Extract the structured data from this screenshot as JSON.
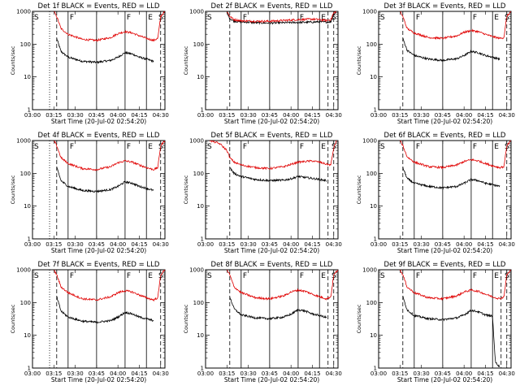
{
  "figure": {
    "xlabel": "Start Time (20-Jul-02 02:54:20)",
    "ylabel": "Counts/sec",
    "x_tick_labels": [
      "03:00",
      "03:15",
      "03:30",
      "03:45",
      "04:00",
      "04:15",
      "04:30"
    ],
    "y_tick_labels": [
      "1",
      "10",
      "100",
      "1000"
    ],
    "region_markers": [
      "S",
      "F",
      "F",
      "E",
      "S"
    ],
    "colors": {
      "events": "#000000",
      "lld": "#e00000",
      "background": "#ffffff"
    }
  },
  "chart_data": [
    {
      "type": "line",
      "title": "Det 1f BLACK = Events, RED = LLD",
      "x_range": [
        "03:00",
        "04:33"
      ],
      "y_scale": "log",
      "ylim": [
        1,
        1000
      ],
      "series": [
        {
          "name": "Events",
          "color": "#000000",
          "t_start": "03:17",
          "t_end": "04:25",
          "x": [
            "03:17",
            "03:20",
            "03:25",
            "03:35",
            "03:45",
            "03:55",
            "04:00",
            "04:05",
            "04:10",
            "04:15",
            "04:20",
            "04:25"
          ],
          "y": [
            150,
            60,
            40,
            30,
            28,
            32,
            40,
            55,
            50,
            40,
            35,
            30
          ]
        },
        {
          "name": "LLD",
          "color": "#e00000",
          "t_start": "03:15",
          "t_end": "04:33",
          "x": [
            "03:15",
            "03:17",
            "03:20",
            "03:25",
            "03:35",
            "03:45",
            "03:55",
            "04:00",
            "04:05",
            "04:10",
            "04:15",
            "04:20",
            "04:25",
            "04:28",
            "04:30",
            "04:33"
          ],
          "y": [
            1000,
            700,
            300,
            200,
            140,
            130,
            160,
            210,
            240,
            220,
            180,
            150,
            130,
            150,
            700,
            1000
          ]
        }
      ],
      "markers": {
        "dotted": [
          "03:12"
        ],
        "dashed": [
          "03:17",
          "04:30"
        ],
        "solid": [
          "03:25",
          "03:45",
          "04:05",
          "04:20"
        ]
      }
    },
    {
      "type": "line",
      "title": "Det 2f BLACK = Events, RED = LLD",
      "x_range": [
        "03:00",
        "04:33"
      ],
      "y_scale": "log",
      "ylim": [
        1,
        1000
      ],
      "series": [
        {
          "name": "Events",
          "color": "#000000",
          "t_start": "03:15",
          "t_end": "04:32",
          "x": [
            "03:15",
            "03:17",
            "03:20",
            "03:25",
            "03:35",
            "03:45",
            "03:55",
            "04:05",
            "04:15",
            "04:20",
            "04:25",
            "04:28",
            "04:30",
            "04:32"
          ],
          "y": [
            1000,
            600,
            500,
            480,
            450,
            440,
            450,
            460,
            470,
            480,
            470,
            480,
            800,
            1000
          ]
        },
        {
          "name": "LLD",
          "color": "#e00000",
          "t_start": "03:15",
          "t_end": "04:32",
          "x": [
            "03:15",
            "03:17",
            "03:20",
            "03:25",
            "03:35",
            "03:45",
            "03:55",
            "04:05",
            "04:15",
            "04:20",
            "04:25",
            "04:28",
            "04:30",
            "04:32"
          ],
          "y": [
            1000,
            700,
            560,
            520,
            500,
            500,
            530,
            560,
            580,
            560,
            530,
            560,
            900,
            1000
          ]
        }
      ],
      "markers": {
        "dotted": [],
        "dashed": [
          "03:17",
          "04:26",
          "04:30"
        ],
        "solid": [
          "03:25",
          "03:45",
          "04:05",
          "04:20"
        ]
      }
    },
    {
      "type": "line",
      "title": "Det 3f BLACK = Events, RED = LLD",
      "x_range": [
        "03:00",
        "04:33"
      ],
      "y_scale": "log",
      "ylim": [
        1,
        1000
      ],
      "series": [
        {
          "name": "Events",
          "color": "#000000",
          "t_start": "03:17",
          "t_end": "04:25",
          "x": [
            "03:17",
            "03:20",
            "03:25",
            "03:35",
            "03:45",
            "03:55",
            "04:00",
            "04:05",
            "04:10",
            "04:15",
            "04:20",
            "04:25"
          ],
          "y": [
            150,
            65,
            45,
            35,
            32,
            36,
            45,
            60,
            55,
            45,
            40,
            35
          ]
        },
        {
          "name": "LLD",
          "color": "#e00000",
          "t_start": "03:15",
          "t_end": "04:33",
          "x": [
            "03:15",
            "03:17",
            "03:20",
            "03:25",
            "03:35",
            "03:45",
            "03:55",
            "04:00",
            "04:05",
            "04:10",
            "04:15",
            "04:20",
            "04:25",
            "04:28",
            "04:30",
            "04:33"
          ],
          "y": [
            1000,
            700,
            300,
            220,
            160,
            150,
            180,
            230,
            260,
            240,
            200,
            170,
            150,
            160,
            700,
            1000
          ]
        }
      ],
      "markers": {
        "dotted": [],
        "dashed": [
          "03:17",
          "04:30"
        ],
        "solid": [
          "03:25",
          "03:45",
          "04:05",
          "04:20"
        ]
      }
    },
    {
      "type": "line",
      "title": "Det 4f BLACK = Events, RED = LLD",
      "x_range": [
        "03:00",
        "04:33"
      ],
      "y_scale": "log",
      "ylim": [
        1,
        1000
      ],
      "series": [
        {
          "name": "Events",
          "color": "#000000",
          "t_start": "03:17",
          "t_end": "04:25",
          "x": [
            "03:17",
            "03:20",
            "03:25",
            "03:35",
            "03:45",
            "03:55",
            "04:00",
            "04:05",
            "04:10",
            "04:15",
            "04:20",
            "04:25"
          ],
          "y": [
            150,
            60,
            40,
            30,
            28,
            32,
            40,
            55,
            50,
            40,
            35,
            30
          ]
        },
        {
          "name": "LLD",
          "color": "#e00000",
          "t_start": "03:15",
          "t_end": "04:33",
          "x": [
            "03:15",
            "03:17",
            "03:20",
            "03:25",
            "03:35",
            "03:45",
            "03:55",
            "04:00",
            "04:05",
            "04:10",
            "04:15",
            "04:20",
            "04:25",
            "04:28",
            "04:30",
            "04:33"
          ],
          "y": [
            1000,
            700,
            300,
            200,
            140,
            130,
            160,
            210,
            240,
            220,
            180,
            150,
            130,
            150,
            700,
            1000
          ]
        }
      ],
      "markers": {
        "dotted": [
          "03:12"
        ],
        "dashed": [
          "03:17",
          "04:30"
        ],
        "solid": [
          "03:25",
          "03:45",
          "04:05",
          "04:20"
        ]
      }
    },
    {
      "type": "line",
      "title": "Det 5f BLACK = Events, RED = LLD",
      "x_range": [
        "03:00",
        "04:33"
      ],
      "y_scale": "log",
      "ylim": [
        1,
        1000
      ],
      "series": [
        {
          "name": "Events",
          "color": "#000000",
          "t_start": "03:17",
          "t_end": "04:25",
          "x": [
            "03:17",
            "03:20",
            "03:25",
            "03:35",
            "03:45",
            "03:55",
            "04:00",
            "04:05",
            "04:10",
            "04:15",
            "04:20",
            "04:25"
          ],
          "y": [
            150,
            100,
            80,
            65,
            60,
            62,
            68,
            80,
            75,
            70,
            65,
            60
          ]
        },
        {
          "name": "LLD",
          "color": "#e00000",
          "t_start": "03:03",
          "t_end": "04:32",
          "x": [
            "03:03",
            "03:10",
            "03:15",
            "03:17",
            "03:20",
            "03:25",
            "03:35",
            "03:45",
            "03:55",
            "04:05",
            "04:15",
            "04:20",
            "04:25",
            "04:28",
            "04:30",
            "04:32"
          ],
          "y": [
            1000,
            800,
            500,
            300,
            220,
            180,
            150,
            140,
            160,
            220,
            240,
            220,
            190,
            180,
            600,
            1000
          ]
        }
      ],
      "markers": {
        "dotted": [],
        "dashed": [
          "03:17",
          "04:26",
          "04:30"
        ],
        "solid": [
          "03:25",
          "03:45",
          "04:05",
          "04:20"
        ]
      }
    },
    {
      "type": "line",
      "title": "Det 6f BLACK = Events, RED = LLD",
      "x_range": [
        "03:00",
        "04:33"
      ],
      "y_scale": "log",
      "ylim": [
        1,
        1000
      ],
      "series": [
        {
          "name": "Events",
          "color": "#000000",
          "t_start": "03:17",
          "t_end": "04:25",
          "x": [
            "03:17",
            "03:20",
            "03:25",
            "03:35",
            "03:45",
            "03:55",
            "04:00",
            "04:05",
            "04:10",
            "04:15",
            "04:20",
            "04:25"
          ],
          "y": [
            150,
            70,
            50,
            40,
            36,
            40,
            50,
            65,
            60,
            50,
            45,
            40
          ]
        },
        {
          "name": "LLD",
          "color": "#e00000",
          "t_start": "03:15",
          "t_end": "04:33",
          "x": [
            "03:15",
            "03:17",
            "03:20",
            "03:25",
            "03:35",
            "03:45",
            "03:55",
            "04:00",
            "04:05",
            "04:10",
            "04:15",
            "04:20",
            "04:25",
            "04:28",
            "04:30",
            "04:33"
          ],
          "y": [
            1000,
            700,
            320,
            220,
            160,
            150,
            180,
            230,
            260,
            240,
            200,
            170,
            150,
            160,
            700,
            1000
          ]
        }
      ],
      "markers": {
        "dotted": [],
        "dashed": [
          "03:17",
          "04:30"
        ],
        "solid": [
          "03:25",
          "03:45",
          "04:05",
          "04:20"
        ]
      }
    },
    {
      "type": "line",
      "title": "Det 7f BLACK = Events, RED = LLD",
      "x_range": [
        "03:00",
        "04:33"
      ],
      "y_scale": "log",
      "ylim": [
        1,
        1000
      ],
      "series": [
        {
          "name": "Events",
          "color": "#000000",
          "t_start": "03:17",
          "t_end": "04:25",
          "x": [
            "03:17",
            "03:20",
            "03:25",
            "03:35",
            "03:45",
            "03:55",
            "04:00",
            "04:05",
            "04:10",
            "04:15",
            "04:20",
            "04:25"
          ],
          "y": [
            150,
            55,
            36,
            27,
            25,
            28,
            36,
            50,
            45,
            36,
            32,
            28
          ]
        },
        {
          "name": "LLD",
          "color": "#e00000",
          "t_start": "03:15",
          "t_end": "04:33",
          "x": [
            "03:15",
            "03:17",
            "03:20",
            "03:25",
            "03:35",
            "03:45",
            "03:55",
            "04:00",
            "04:05",
            "04:10",
            "04:15",
            "04:20",
            "04:25",
            "04:28",
            "04:30",
            "04:33"
          ],
          "y": [
            1000,
            700,
            300,
            200,
            130,
            120,
            150,
            200,
            230,
            210,
            170,
            140,
            120,
            140,
            700,
            1000
          ]
        }
      ],
      "markers": {
        "dotted": [
          "03:12"
        ],
        "dashed": [
          "03:17",
          "04:30"
        ],
        "solid": [
          "03:25",
          "03:45",
          "04:05",
          "04:20"
        ]
      }
    },
    {
      "type": "line",
      "title": "Det 8f BLACK = Events, RED = LLD",
      "x_range": [
        "03:00",
        "04:33"
      ],
      "y_scale": "log",
      "ylim": [
        1,
        1000
      ],
      "series": [
        {
          "name": "Events",
          "color": "#000000",
          "t_start": "03:17",
          "t_end": "04:25",
          "x": [
            "03:17",
            "03:20",
            "03:25",
            "03:35",
            "03:45",
            "03:55",
            "04:00",
            "04:05",
            "04:10",
            "04:15",
            "04:20",
            "04:25"
          ],
          "y": [
            150,
            65,
            42,
            34,
            32,
            36,
            44,
            60,
            55,
            45,
            40,
            35
          ]
        },
        {
          "name": "LLD",
          "color": "#e00000",
          "t_start": "03:15",
          "t_end": "04:33",
          "x": [
            "03:15",
            "03:17",
            "03:20",
            "03:25",
            "03:35",
            "03:45",
            "03:55",
            "04:00",
            "04:05",
            "04:10",
            "04:15",
            "04:20",
            "04:25",
            "04:28",
            "04:30",
            "04:33"
          ],
          "y": [
            1000,
            700,
            300,
            200,
            140,
            130,
            160,
            210,
            240,
            220,
            180,
            150,
            130,
            150,
            700,
            1000
          ]
        }
      ],
      "markers": {
        "dotted": [],
        "dashed": [
          "03:17",
          "04:26",
          "04:30"
        ],
        "solid": [
          "03:25",
          "03:45",
          "04:05",
          "04:20"
        ]
      }
    },
    {
      "type": "line",
      "title": "Det 9f BLACK = Events, RED = LLD",
      "x_range": [
        "03:00",
        "04:33"
      ],
      "y_scale": "log",
      "ylim": [
        1,
        1000
      ],
      "series": [
        {
          "name": "Events",
          "color": "#000000",
          "t_start": "03:17",
          "t_end": "04:25",
          "x": [
            "03:17",
            "03:20",
            "03:25",
            "03:35",
            "03:45",
            "03:55",
            "04:00",
            "04:05",
            "04:10",
            "04:15",
            "04:20",
            "04:22",
            "04:25"
          ],
          "y": [
            150,
            60,
            40,
            32,
            30,
            34,
            42,
            58,
            52,
            42,
            38,
            1.5,
            1.1
          ]
        },
        {
          "name": "LLD",
          "color": "#e00000",
          "t_start": "03:15",
          "t_end": "04:33",
          "x": [
            "03:15",
            "03:17",
            "03:20",
            "03:25",
            "03:35",
            "03:45",
            "03:55",
            "04:00",
            "04:05",
            "04:10",
            "04:15",
            "04:20",
            "04:25",
            "04:28",
            "04:30",
            "04:33"
          ],
          "y": [
            1000,
            700,
            300,
            200,
            140,
            130,
            160,
            210,
            240,
            220,
            180,
            150,
            130,
            150,
            700,
            1000
          ]
        }
      ],
      "markers": {
        "dotted": [],
        "dashed": [
          "03:17",
          "04:26",
          "04:30"
        ],
        "solid": [
          "03:25",
          "03:45",
          "04:05",
          "04:20"
        ]
      }
    }
  ]
}
